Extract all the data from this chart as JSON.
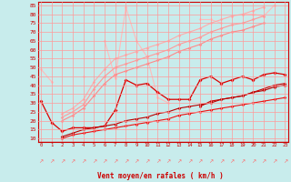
{
  "xlabel": "Vent moyen/en rafales ( km/h )",
  "bg_color": "#c8ecec",
  "grid_color": "#ff9999",
  "x": [
    0,
    1,
    2,
    3,
    4,
    5,
    6,
    7,
    8,
    9,
    10,
    11,
    12,
    13,
    14,
    15,
    16,
    17,
    18,
    19,
    20,
    21,
    22,
    23
  ],
  "ylim": [
    8,
    87
  ],
  "xlim": [
    -0.3,
    23.3
  ],
  "yticks": [
    10,
    15,
    20,
    25,
    30,
    35,
    40,
    45,
    50,
    55,
    60,
    65,
    70,
    75,
    80,
    85
  ],
  "xticks": [
    0,
    1,
    2,
    3,
    4,
    5,
    6,
    7,
    8,
    9,
    10,
    11,
    12,
    13,
    14,
    15,
    16,
    17,
    18,
    19,
    20,
    21,
    22,
    23
  ],
  "line1_color": "#ffbbbb",
  "line2_color": "#ffaaaa",
  "line3_color": "#ff9999",
  "line4_color": "#ff8888",
  "line5_color": "#dd0000",
  "line6_color": "#cc0000",
  "line7_color": "#ee1111",
  "line8_color": "#bb0000",
  "line1_y": [
    49,
    42,
    null,
    null,
    45,
    null,
    65,
    44,
    84,
    65,
    56,
    33,
    30,
    null,
    null,
    77,
    77,
    75,
    null,
    80,
    80,
    79,
    85,
    null
  ],
  "line2_y": [
    null,
    null,
    24,
    27,
    32,
    42,
    49,
    55,
    57,
    59,
    61,
    63,
    65,
    68,
    70,
    72,
    75,
    77,
    79,
    80,
    82,
    84,
    null,
    null
  ],
  "line3_y": [
    null,
    null,
    22,
    25,
    29,
    38,
    45,
    50,
    52,
    54,
    56,
    58,
    60,
    63,
    65,
    67,
    70,
    72,
    74,
    75,
    77,
    79,
    null,
    null
  ],
  "line4_y": [
    null,
    null,
    20,
    23,
    27,
    34,
    41,
    46,
    48,
    50,
    52,
    54,
    56,
    59,
    61,
    63,
    66,
    68,
    70,
    71,
    73,
    75,
    null,
    null
  ],
  "line5_y": [
    31,
    19,
    14,
    16,
    16,
    16,
    17,
    26,
    43,
    40,
    41,
    36,
    32,
    32,
    32,
    43,
    45,
    41,
    43,
    45,
    43,
    46,
    47,
    46
  ],
  "line6_y": [
    null,
    null,
    null,
    null,
    null,
    null,
    null,
    null,
    null,
    null,
    null,
    null,
    null,
    null,
    null,
    28,
    31,
    32,
    33,
    34,
    36,
    38,
    40,
    41
  ],
  "line7_y": [
    null,
    null,
    10,
    12,
    13,
    14,
    15,
    16,
    17,
    18,
    19,
    20,
    21,
    23,
    24,
    25,
    26,
    27,
    28,
    29,
    30,
    31,
    32,
    33
  ],
  "line8_y": [
    null,
    null,
    11,
    13,
    15,
    16,
    17,
    18,
    20,
    21,
    22,
    24,
    25,
    27,
    28,
    29,
    30,
    32,
    33,
    34,
    36,
    37,
    39,
    40
  ],
  "arrow_color": "#ff6666",
  "spine_color": "#cc0000"
}
